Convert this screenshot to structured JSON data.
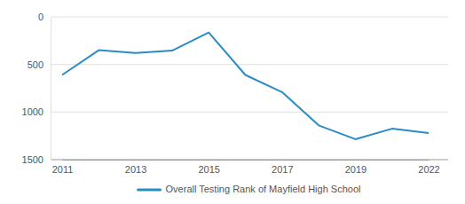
{
  "chart_data": {
    "type": "line",
    "categories": [
      "2011",
      null,
      "2013",
      null,
      "2015",
      null,
      "2017",
      null,
      "2019",
      null,
      "2022"
    ],
    "series": [
      {
        "name": "Overall Testing Rank of Mayfield High School",
        "color": "#2b8cc4",
        "values": [
          610,
          350,
          380,
          355,
          165,
          610,
          790,
          1140,
          1285,
          1175,
          1220
        ]
      }
    ],
    "ylim": [
      0,
      1500
    ],
    "yticks": [
      0,
      500,
      1000,
      1500
    ],
    "grid": true,
    "legend": "bottom"
  }
}
